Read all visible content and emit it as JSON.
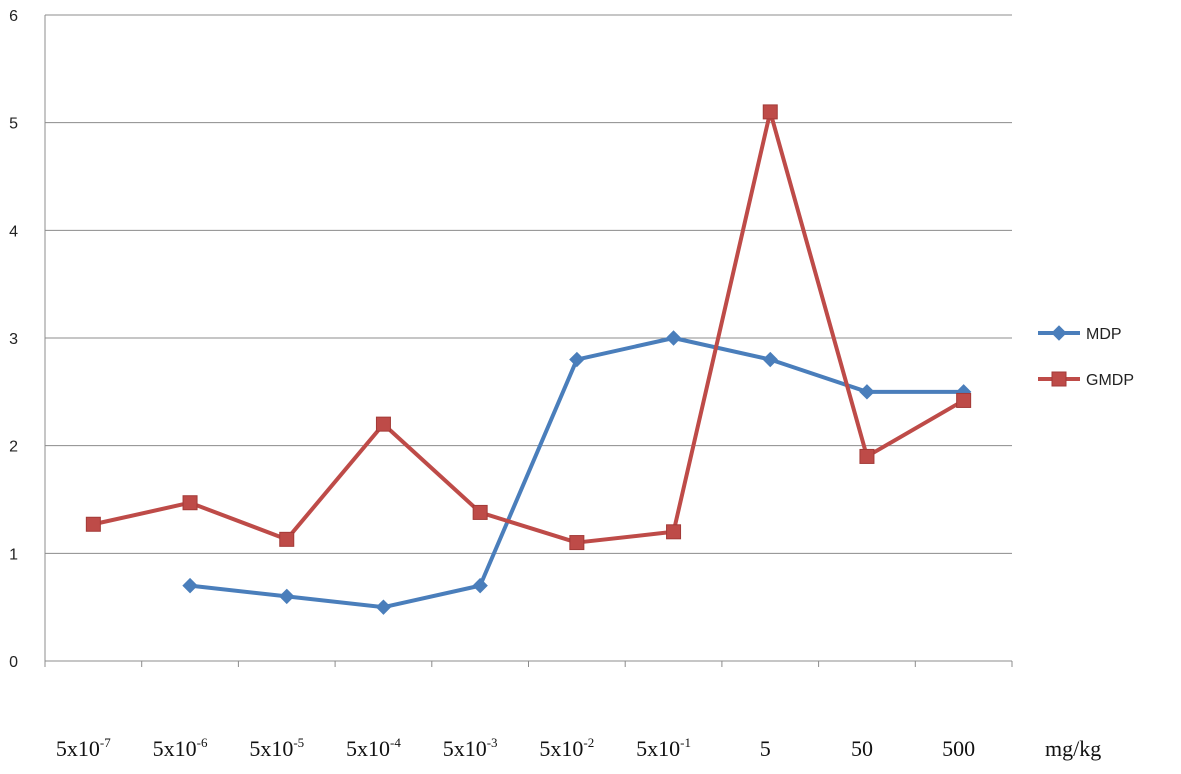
{
  "chart_data": {
    "type": "line",
    "categories": [
      [
        "5x10",
        "-7"
      ],
      [
        "5x10",
        "-6"
      ],
      [
        "5x10",
        "-5"
      ],
      [
        "5x10",
        "-4"
      ],
      [
        "5x10",
        "-3"
      ],
      [
        "5x10",
        "-2"
      ],
      [
        "5x10",
        "-1"
      ],
      [
        "5",
        ""
      ],
      [
        "50",
        ""
      ],
      [
        "500",
        ""
      ]
    ],
    "unit_label": "mg/kg",
    "ylim": [
      0,
      6
    ],
    "yticks": [
      0,
      1,
      2,
      3,
      4,
      5,
      6
    ],
    "grid": true,
    "legend_position": "right",
    "series": [
      {
        "name": "MDP",
        "color": "#4a7ebb",
        "marker": "diamond",
        "values": [
          null,
          0.7,
          0.6,
          0.5,
          0.7,
          2.8,
          3.0,
          2.8,
          2.5,
          2.5
        ]
      },
      {
        "name": "GMDP",
        "color": "#be4b48",
        "marker": "square",
        "values": [
          1.27,
          1.47,
          1.13,
          2.2,
          1.38,
          1.1,
          1.2,
          5.1,
          1.9,
          2.42
        ]
      }
    ]
  }
}
